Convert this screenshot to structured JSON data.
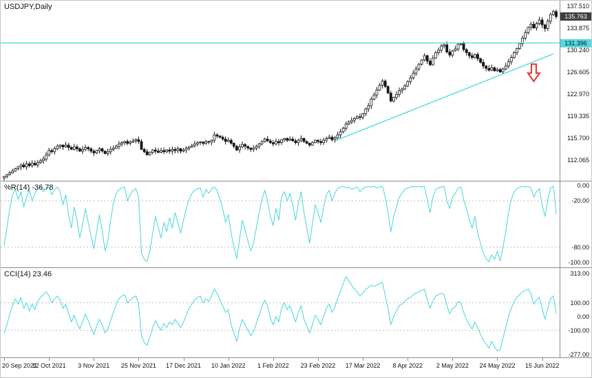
{
  "colors": {
    "cyan": "#55d9de",
    "candle": "#161616",
    "bid_tag_bg": "#3f3f3f",
    "bid_tag_text": "#ffffff",
    "line_tag_bg": "#55d9de",
    "line_tag_text": "#111111",
    "arrow": "#e03428",
    "level_dash": "#bfbfbf",
    "panel_border": "#8a8a8a"
  },
  "chart_data": [
    {
      "type": "candlestick",
      "title": "USDJPY,Daily",
      "ylim": [
        108.6,
        138.4
      ],
      "price_ticks": [
        {
          "value": 137.51,
          "label": "137.510"
        },
        {
          "value": 133.875,
          "label": "133.875"
        },
        {
          "value": 130.24,
          "label": "130.240"
        },
        {
          "value": 126.605,
          "label": "126.605"
        },
        {
          "value": 122.97,
          "label": "122.970"
        },
        {
          "value": 119.335,
          "label": "119.335"
        },
        {
          "value": 115.7,
          "label": "115.700"
        },
        {
          "value": 112.065,
          "label": "112.065"
        }
      ],
      "bid": {
        "value": 135.763,
        "label": "135.763"
      },
      "hline": {
        "value": 131.396,
        "label": "131.396"
      },
      "trendline": {
        "from": {
          "index": 118,
          "price": 115.2
        },
        "to": {
          "index": 196,
          "price": 129.6
        }
      },
      "arrow": {
        "index": 189,
        "price": 127.9
      },
      "closes": [
        109.3,
        109.6,
        109.9,
        110.2,
        110.6,
        110.9,
        111.2,
        110.9,
        111.4,
        111.1,
        111.5,
        111.2,
        111.6,
        111.9,
        112.2,
        112.9,
        113.6,
        113.4,
        113.9,
        114.3,
        114.5,
        114.2,
        114.5,
        114.1,
        113.8,
        114.2,
        113.9,
        113.5,
        113.8,
        114.1,
        113.9,
        113.5,
        113.2,
        113.6,
        113.9,
        113.5,
        113.1,
        113.4,
        113.8,
        114.0,
        114.3,
        114.7,
        114.9,
        115.1,
        114.8,
        115.0,
        115.2,
        115.4,
        115.1,
        113.8,
        113.4,
        112.9,
        113.3,
        113.7,
        113.5,
        113.3,
        113.6,
        113.4,
        113.7,
        113.5,
        113.8,
        113.6,
        113.9,
        113.5,
        113.7,
        114.0,
        114.2,
        114.4,
        114.7,
        114.9,
        115.0,
        114.8,
        115.1,
        115.0,
        115.3,
        116.2,
        116.0,
        115.8,
        115.5,
        115.1,
        115.3,
        114.8,
        114.3,
        113.7,
        114.2,
        114.6,
        114.3,
        114.0,
        113.8,
        114.0,
        114.3,
        114.7,
        115.1,
        115.5,
        115.2,
        114.9,
        114.7,
        115.1,
        114.9,
        115.4,
        115.6,
        115.3,
        115.5,
        115.2,
        114.9,
        115.3,
        115.6,
        115.1,
        114.8,
        114.5,
        114.9,
        115.3,
        115.1,
        114.9,
        115.3,
        115.6,
        115.8,
        115.4,
        115.7,
        116.2,
        116.7,
        117.3,
        118.0,
        118.3,
        118.6,
        118.9,
        119.2,
        119.1,
        119.7,
        120.5,
        121.0,
        122.1,
        122.8,
        123.6,
        124.4,
        125.1,
        124.2,
        123.1,
        121.8,
        122.4,
        122.9,
        123.5,
        123.8,
        124.3,
        125.0,
        125.6,
        126.4,
        127.1,
        127.9,
        128.6,
        129.3,
        128.4,
        127.8,
        128.9,
        129.8,
        130.2,
        130.9,
        131.1,
        129.9,
        129.4,
        130.1,
        130.4,
        131.2,
        131.3,
        130.3,
        129.8,
        129.3,
        129.0,
        129.5,
        128.8,
        128.2,
        127.6,
        127.2,
        126.9,
        127.3,
        126.8,
        127.0,
        126.6,
        127.1,
        127.6,
        128.3,
        129.0,
        129.8,
        130.5,
        131.3,
        132.2,
        133.1,
        134.0,
        134.5,
        133.9,
        134.6,
        135.2,
        134.4,
        133.8,
        135.0,
        136.1,
        136.6,
        135.76
      ],
      "x_axis": {
        "tick_step": 16,
        "labels": [
          "20 Sep 2021",
          "12 Oct 2021",
          "3 Nov 2021",
          "25 Nov 2021",
          "17 Dec 2021",
          "10 Jan 2022",
          "1 Feb 2022",
          "23 Feb 2022",
          "17 Mar 2022",
          "8 Apr 2022",
          "2 May 2022",
          "24 May 2022",
          "15 Jun 2022"
        ]
      }
    },
    {
      "type": "line",
      "name": "%R(14)",
      "value": -36.78,
      "value_label": "%R(14) -36.78",
      "line_name": "wpr-line",
      "ylim": [
        -100,
        0
      ],
      "levels": [
        -20,
        -80
      ],
      "ticks": [
        {
          "value": 0,
          "label": "0.00"
        },
        {
          "value": -20,
          "label": "-20.00"
        },
        {
          "value": -80,
          "label": "-80.00"
        },
        {
          "value": -100,
          "label": "-100.00"
        }
      ],
      "values": [
        -78,
        -55,
        -30,
        -12,
        -5,
        -18,
        -8,
        -28,
        -15,
        -6,
        -20,
        -10,
        -4,
        -2,
        -8,
        -3,
        -2,
        -12,
        -5,
        -2,
        -8,
        -25,
        -12,
        -38,
        -55,
        -28,
        -45,
        -68,
        -50,
        -30,
        -48,
        -65,
        -82,
        -60,
        -38,
        -58,
        -85,
        -72,
        -45,
        -22,
        -10,
        -5,
        -3,
        -2,
        -20,
        -12,
        -6,
        -4,
        -15,
        -88,
        -96,
        -99,
        -85,
        -62,
        -40,
        -55,
        -68,
        -48,
        -60,
        -42,
        -55,
        -35,
        -48,
        -62,
        -45,
        -30,
        -18,
        -10,
        -6,
        -4,
        -3,
        -15,
        -5,
        -10,
        -4,
        -2,
        -6,
        -18,
        -30,
        -48,
        -38,
        -62,
        -80,
        -95,
        -70,
        -45,
        -58,
        -72,
        -85,
        -75,
        -55,
        -35,
        -18,
        -6,
        -20,
        -40,
        -52,
        -30,
        -45,
        -15,
        -8,
        -20,
        -10,
        -25,
        -45,
        -22,
        -8,
        -35,
        -55,
        -75,
        -50,
        -25,
        -35,
        -48,
        -28,
        -12,
        -6,
        -20,
        -10,
        -4,
        -2,
        -1,
        -3,
        -2,
        -5,
        -3,
        -2,
        -8,
        -4,
        -2,
        -1,
        -2,
        -1,
        -3,
        -2,
        -1,
        -15,
        -35,
        -60,
        -40,
        -28,
        -15,
        -10,
        -5,
        -3,
        -2,
        -1,
        -2,
        -1,
        -2,
        -1,
        -18,
        -35,
        -15,
        -5,
        -3,
        -2,
        -1,
        -20,
        -30,
        -15,
        -10,
        -3,
        -2,
        -18,
        -30,
        -45,
        -55,
        -40,
        -62,
        -75,
        -88,
        -95,
        -99,
        -90,
        -96,
        -85,
        -98,
        -80,
        -60,
        -35,
        -18,
        -8,
        -4,
        -2,
        -1,
        -2,
        -1,
        -3,
        -15,
        -8,
        -4,
        -25,
        -40,
        -18,
        -3,
        -1,
        -36.78
      ]
    },
    {
      "type": "line",
      "name": "CCI(14)",
      "value": 23.46,
      "value_label": "CCI(14) 23.46",
      "line_name": "cci-line",
      "ylim": [
        -277,
        313
      ],
      "levels": [
        100,
        -100
      ],
      "ticks": [
        {
          "value": 313,
          "label": "313.00"
        },
        {
          "value": 100,
          "label": "100.00"
        },
        {
          "value": 0,
          "label": "0.00"
        },
        {
          "value": -100,
          "label": "-100.00"
        },
        {
          "value": -277,
          "label": "-277.00"
        }
      ],
      "values": [
        -120,
        -60,
        20,
        80,
        130,
        90,
        140,
        60,
        100,
        40,
        90,
        50,
        110,
        140,
        160,
        180,
        150,
        100,
        130,
        150,
        120,
        60,
        90,
        20,
        -40,
        10,
        -50,
        -90,
        -40,
        20,
        -30,
        -80,
        -130,
        -70,
        -20,
        -60,
        -120,
        -90,
        -30,
        30,
        90,
        130,
        150,
        160,
        100,
        120,
        140,
        150,
        90,
        -140,
        -190,
        -210,
        -150,
        -80,
        -30,
        -70,
        -100,
        -50,
        -80,
        -40,
        -60,
        -20,
        -50,
        -80,
        -40,
        10,
        60,
        90,
        120,
        140,
        150,
        100,
        130,
        110,
        150,
        200,
        170,
        120,
        80,
        30,
        50,
        -60,
        -120,
        -180,
        -90,
        -20,
        -60,
        -100,
        -140,
        -110,
        -50,
        10,
        70,
        120,
        80,
        -10,
        -60,
        0,
        -40,
        60,
        100,
        50,
        80,
        20,
        -40,
        30,
        80,
        -20,
        -70,
        -120,
        -60,
        10,
        -20,
        -60,
        0,
        60,
        90,
        30,
        70,
        130,
        180,
        240,
        290,
        260,
        230,
        200,
        180,
        150,
        170,
        200,
        210,
        230,
        220,
        230,
        240,
        250,
        150,
        60,
        -60,
        0,
        40,
        80,
        90,
        110,
        130,
        140,
        160,
        170,
        180,
        190,
        200,
        120,
        60,
        110,
        150,
        160,
        170,
        160,
        80,
        20,
        60,
        70,
        110,
        100,
        30,
        -20,
        -60,
        -90,
        -40,
        -80,
        -130,
        -170,
        -200,
        -230,
        -180,
        -220,
        -250,
        -240,
        -160,
        -80,
        0,
        60,
        110,
        140,
        160,
        180,
        190,
        200,
        170,
        90,
        120,
        140,
        60,
        -20,
        60,
        130,
        150,
        23.46
      ]
    }
  ]
}
